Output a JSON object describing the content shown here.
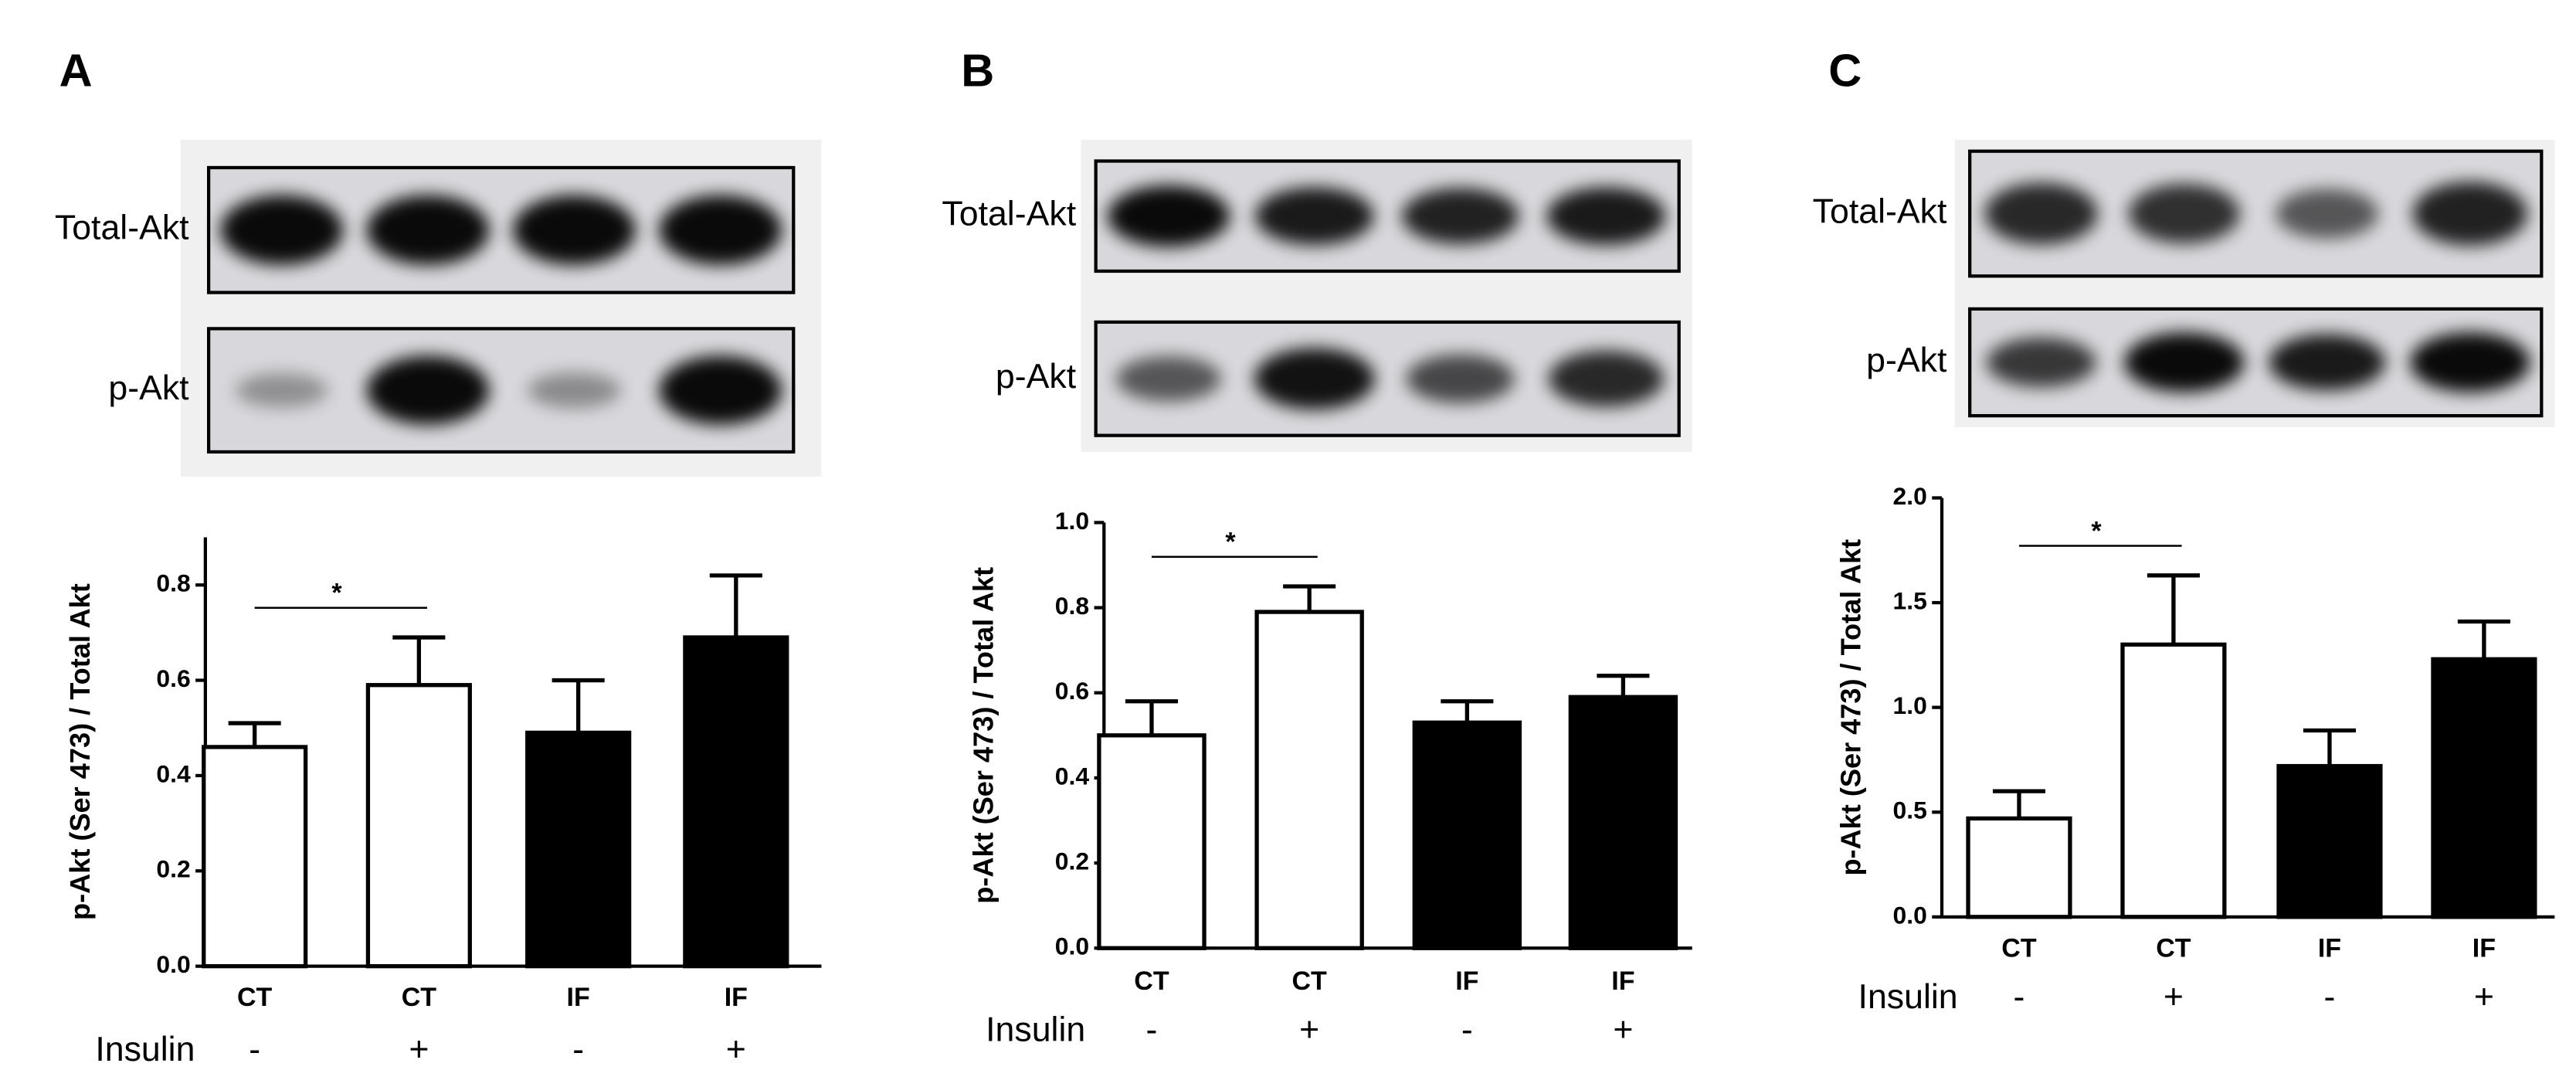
{
  "chart_data": [
    {
      "type": "bar",
      "panel": "A",
      "blot_labels": [
        "Total-Akt",
        "p-Akt"
      ],
      "ylabel": "p-Akt (Ser 473) / Total Akt",
      "categories": [
        "CT",
        "CT",
        "IF",
        "IF"
      ],
      "insulin_label": "Insulin",
      "insulin": [
        "-",
        "+",
        "-",
        "+"
      ],
      "values": [
        0.46,
        0.59,
        0.49,
        0.69
      ],
      "errors": [
        0.05,
        0.1,
        0.11,
        0.13
      ],
      "colors": [
        "#ffffff",
        "#ffffff",
        "#000000",
        "#000000"
      ],
      "ylim": [
        0,
        0.9
      ],
      "yticks": [
        {
          "value": 0,
          "label": "0.0"
        },
        0.2,
        0.4,
        0.6,
        0.8
      ],
      "significance_label": "*"
    },
    {
      "type": "bar",
      "panel": "B",
      "blot_labels": [
        "Total-Akt",
        "p-Akt"
      ],
      "ylabel": "p-Akt (Ser 473) / Total Akt",
      "categories": [
        "CT",
        "CT",
        "IF",
        "IF"
      ],
      "insulin_label": "Insulin",
      "insulin": [
        "-",
        "+",
        "-",
        "+"
      ],
      "values": [
        0.5,
        0.79,
        0.53,
        0.59
      ],
      "errors": [
        0.08,
        0.06,
        0.05,
        0.05
      ],
      "colors": [
        "#ffffff",
        "#ffffff",
        "#000000",
        "#000000"
      ],
      "ylim": [
        0,
        1.0
      ],
      "yticks": [
        {
          "value": 0,
          "label": "0.0"
        },
        0.2,
        0.4,
        0.6,
        0.8,
        {
          "value": 1,
          "label": "1.0"
        }
      ],
      "significance_label": "*"
    },
    {
      "type": "bar",
      "panel": "C",
      "blot_labels": [
        "Total-Akt",
        "p-Akt"
      ],
      "ylabel": "p-Akt (Ser 473) / Total Akt",
      "categories": [
        "CT",
        "CT",
        "IF",
        "IF"
      ],
      "insulin_label": "Insulin",
      "insulin": [
        "-",
        "+",
        "-",
        "+"
      ],
      "values": [
        0.47,
        1.3,
        0.72,
        1.23
      ],
      "errors": [
        0.13,
        0.33,
        0.17,
        0.18
      ],
      "colors": [
        "#ffffff",
        "#ffffff",
        "#000000",
        "#000000"
      ],
      "ylim": [
        0,
        2.0
      ],
      "yticks": [
        {
          "value": 0,
          "label": "0.0"
        },
        0.5,
        {
          "value": 1,
          "label": "1.0"
        },
        1.5,
        {
          "value": 2,
          "label": "2.0"
        }
      ],
      "significance_label": "*"
    }
  ]
}
